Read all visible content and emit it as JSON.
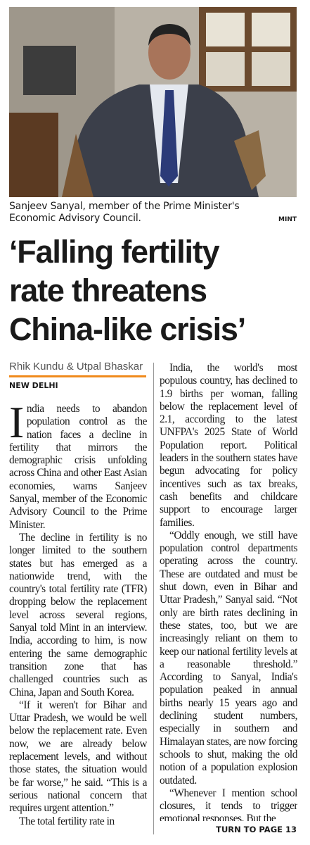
{
  "photo": {
    "caption": "Sanjeev Sanyal, member of the Prime Minister's Economic Advisory Council.",
    "credit": "MINT"
  },
  "headline": [
    "‘Falling fertility",
    "rate threatens",
    "China-like crisis’"
  ],
  "byline": {
    "authors": "Rhik Kundu & Utpal Bhaskar",
    "dateline": "NEW DELHI"
  },
  "columns": [
    [
      "India needs to abandon population control as the nation faces a decline in fertility that mirrors the demographic crisis unfolding across China and other East Asian economies, warns Sanjeev Sanyal, member of the Economic Advisory Council to the Prime Minister.",
      "The decline in fertility is no longer limited to the southern states but has emerged as a nationwide trend, with the country's total fertility rate (TFR) dropping below the replacement level across several regions, Sanyal told Mint in an interview. India, according to him, is now entering the same demographic transition zone that has challenged countries such as China, Japan and South Korea.",
      "“If it weren't for Bihar and Uttar Pradesh, we would be well below the replacement rate. Even now, we are already below replacement levels, and without those states, the situation would be far worse,” he said. “This is a serious national concern that requires urgent attention.”",
      "The total fertility rate in"
    ],
    [
      "India, the world's most populous country, has declined to 1.9 births per woman, falling below the replacement level of 2.1, according to the latest UNFPA's 2025 State of World Population report. Political leaders in the southern states have begun advocating for policy incentives such as tax breaks, cash benefits and childcare support to encourage larger families.",
      "“Oddly enough, we still have population control departments operating across the country. These are outdated and must be shut down, even in Bihar and Uttar Pradesh,” Sanyal said. “Not only are birth rates declining in these states, too, but we are increasingly reliant on them to keep our national fertility levels at a reasonable threshold.” According to Sanyal, India's population peaked in annual births nearly 15 years ago and declining student numbers, especially in southern and Himalayan states, are now forcing schools to shut, making the old notion of a population explosion outdated.",
      "“Whenever I mention school closures, it tends to trigger emotional responses. But the"
    ]
  ],
  "jump": "TURN TO PAGE 13"
}
